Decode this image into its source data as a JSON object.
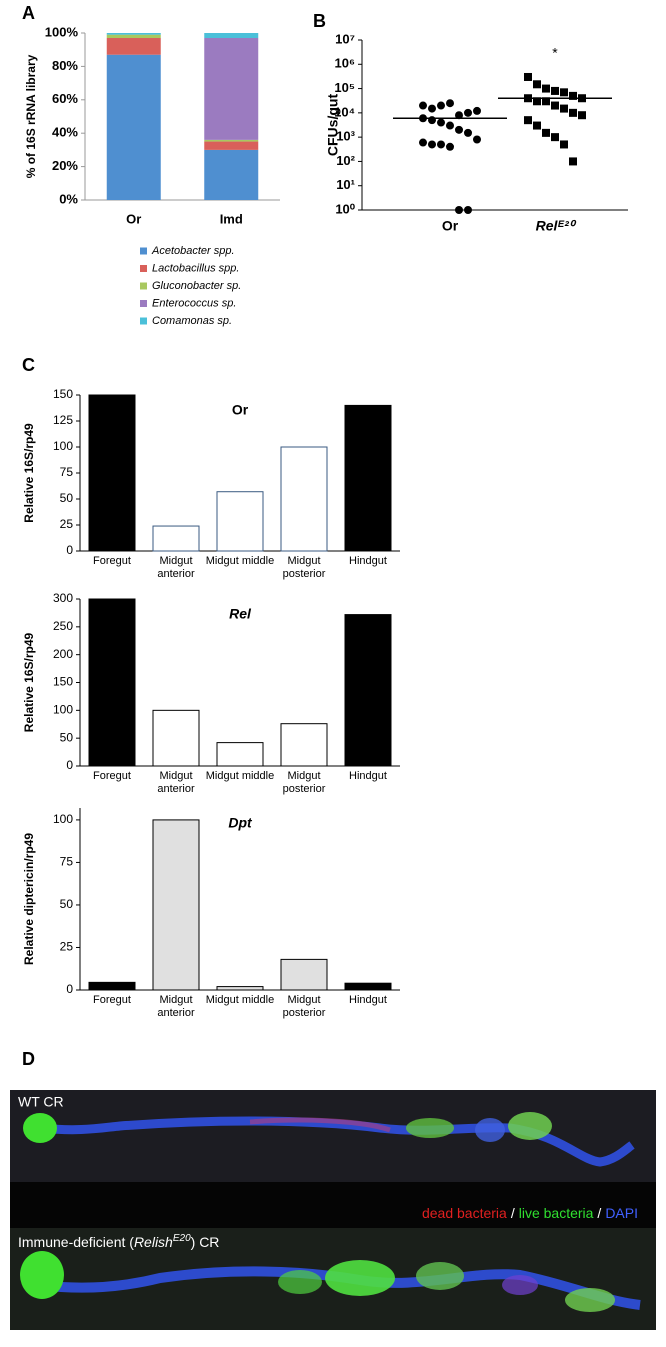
{
  "panel_labels": [
    "A",
    "B",
    "C",
    "D"
  ],
  "chart_data": [
    {
      "type": "stacked_bar",
      "ylabel": "% of 16S rRNA library",
      "categories": [
        "Or",
        "Imd"
      ],
      "series": [
        {
          "name": "Acetobacter spp.",
          "color": "#4f8fd0",
          "values": [
            87,
            30
          ]
        },
        {
          "name": "Lactobacillus spp.",
          "color": "#d9605a",
          "values": [
            10,
            5
          ]
        },
        {
          "name": "Gluconobacter sp.",
          "color": "#a9c860",
          "values": [
            2,
            1
          ]
        },
        {
          "name": "Enterococcus sp.",
          "color": "#9b7bc0",
          "values": [
            0,
            61
          ]
        },
        {
          "name": "Comamonas sp.",
          "color": "#4bc0d9",
          "values": [
            1,
            3
          ]
        }
      ],
      "ylim": [
        0,
        100
      ],
      "yticks": [
        {
          "value": 0,
          "label": "0%"
        },
        {
          "value": 20,
          "label": "20%"
        },
        {
          "value": 40,
          "label": "40%"
        },
        {
          "value": 60,
          "label": "60%"
        },
        {
          "value": 80,
          "label": "80%"
        },
        {
          "value": 100,
          "label": "100%"
        }
      ]
    },
    {
      "type": "scatter",
      "ylabel": "CFUs/gut",
      "categories": [
        "Or",
        "Relᴱ²⁰"
      ],
      "log_scale": true,
      "groups": [
        {
          "marker": "circle",
          "mean": 6000,
          "values": [
            20000,
            15000,
            20000,
            25000,
            8000,
            10000,
            12000,
            6000,
            5000,
            4000,
            3000,
            2000,
            1500,
            800,
            600,
            500,
            500,
            400,
            1,
            1
          ]
        },
        {
          "marker": "square",
          "mean": 40000,
          "values": [
            300000,
            150000,
            100000,
            80000,
            70000,
            50000,
            40000,
            40000,
            30000,
            30000,
            20000,
            15000,
            10000,
            8000,
            5000,
            3000,
            1500,
            1000,
            500,
            100
          ]
        }
      ],
      "annotation": "*",
      "ylim": [
        1,
        10000000
      ],
      "yticks": [
        {
          "value": 1,
          "label": "10⁰"
        },
        {
          "value": 10,
          "label": "10¹"
        },
        {
          "value": 100,
          "label": "10²"
        },
        {
          "value": 1000,
          "label": "10³"
        },
        {
          "value": 10000,
          "label": "10⁴"
        },
        {
          "value": 100000,
          "label": "10⁵"
        },
        {
          "value": 1000000,
          "label": "10⁶"
        },
        {
          "value": 10000000,
          "label": "10⁷"
        }
      ]
    },
    {
      "type": "bar",
      "title": "Or",
      "title_italic": false,
      "ylabel": "Relative 16S/rp49",
      "categories": [
        "Foregut",
        "Midgut anterior",
        "Midgut middle",
        "Midgut posterior",
        "Hindgut"
      ],
      "values": [
        150,
        24,
        57,
        100,
        140
      ],
      "colors": [
        "#000000",
        "#ffffff",
        "#ffffff",
        "#ffffff",
        "#000000"
      ],
      "edgecolor": "#3a5a80",
      "ylim": [
        0,
        150
      ],
      "yticks": [
        0,
        25,
        50,
        75,
        100,
        125,
        150
      ]
    },
    {
      "type": "bar",
      "title": "Rel",
      "title_italic": true,
      "ylabel": "Relative 16S/rp49",
      "categories": [
        "Foregut",
        "Midgut anterior",
        "Midgut middle",
        "Midgut posterior",
        "Hindgut"
      ],
      "values": [
        300,
        100,
        42,
        76,
        272
      ],
      "colors": [
        "#000000",
        "#ffffff",
        "#ffffff",
        "#ffffff",
        "#000000"
      ],
      "edgecolor": "#000000",
      "ylim": [
        0,
        300
      ],
      "yticks": [
        0,
        50,
        100,
        150,
        200,
        250,
        300
      ]
    },
    {
      "type": "bar",
      "title": "Dpt",
      "title_italic": true,
      "ylabel": "Relative diptericin/rp49",
      "categories": [
        "Foregut",
        "Midgut anterior",
        "Midgut middle",
        "Midgut posterior",
        "Hindgut"
      ],
      "values": [
        4.5,
        100,
        2,
        18,
        4
      ],
      "colors": [
        "#000000",
        "#e0e0e0",
        "#e0e0e0",
        "#e0e0e0",
        "#000000"
      ],
      "edgecolor": "#000000",
      "ylim": [
        0,
        107
      ],
      "yticks": [
        0,
        25,
        50,
        75,
        100
      ]
    }
  ],
  "image": {
    "top_label": "WT CR",
    "legend": [
      {
        "text": "dead bacteria",
        "color": "#e02020"
      },
      {
        "text": "/",
        "color": "#ffffff"
      },
      {
        "text": "live bacteria",
        "color": "#30e030"
      },
      {
        "text": "/",
        "color": "#ffffff"
      },
      {
        "text": "DAPI",
        "color": "#4060ff"
      }
    ],
    "bottom_label": [
      "Immune-deficient (",
      "Relish",
      "E20",
      ") CR"
    ]
  }
}
